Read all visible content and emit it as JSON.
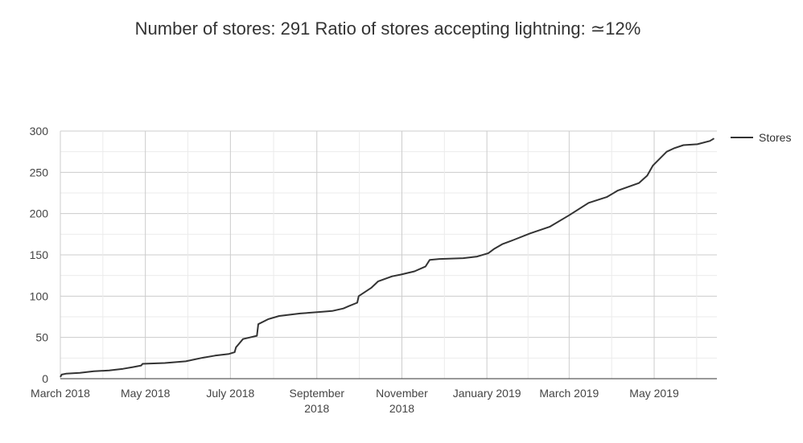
{
  "chart_data": {
    "type": "line",
    "title": "Number of stores: 291 Ratio of stores accepting lightning: ≃12%",
    "xlabel": "",
    "ylabel": "",
    "ylim": [
      0,
      300
    ],
    "yticks": [
      0,
      50,
      100,
      150,
      200,
      250,
      300
    ],
    "xlim": [
      "2018-03-01",
      "2019-06-15"
    ],
    "xticks": [
      {
        "date": "2018-03-01",
        "label": [
          "March 2018"
        ]
      },
      {
        "date": "2018-05-01",
        "label": [
          "May 2018"
        ]
      },
      {
        "date": "2018-07-01",
        "label": [
          "July 2018"
        ]
      },
      {
        "date": "2018-09-01",
        "label": [
          "September",
          "2018"
        ]
      },
      {
        "date": "2018-11-01",
        "label": [
          "November",
          "2018"
        ]
      },
      {
        "date": "2019-01-01",
        "label": [
          "January 2019"
        ]
      },
      {
        "date": "2019-03-01",
        "label": [
          "March 2019"
        ]
      },
      {
        "date": "2019-05-01",
        "label": [
          "May 2019"
        ]
      }
    ],
    "grid": true,
    "legend_position": "right",
    "colors": {
      "line": "#333333",
      "grid_major": "#cccccc",
      "grid_minor": "#ebebeb",
      "axis": "#333333"
    },
    "series": [
      {
        "name": "Stores",
        "x": [
          "2018-03-01",
          "2018-03-02",
          "2018-03-05",
          "2018-03-15",
          "2018-03-25",
          "2018-04-05",
          "2018-04-15",
          "2018-04-22",
          "2018-04-28",
          "2018-04-29",
          "2018-05-15",
          "2018-05-30",
          "2018-06-10",
          "2018-06-20",
          "2018-06-30",
          "2018-07-04",
          "2018-07-05",
          "2018-07-10",
          "2018-07-15",
          "2018-07-20",
          "2018-07-21",
          "2018-07-28",
          "2018-08-05",
          "2018-08-20",
          "2018-09-05",
          "2018-09-12",
          "2018-09-20",
          "2018-09-24",
          "2018-09-30",
          "2018-10-01",
          "2018-10-10",
          "2018-10-15",
          "2018-10-25",
          "2018-10-31",
          "2018-11-10",
          "2018-11-18",
          "2018-11-21",
          "2018-11-28",
          "2018-12-15",
          "2018-12-25",
          "2019-01-02",
          "2019-01-06",
          "2019-01-12",
          "2019-01-20",
          "2019-02-01",
          "2019-02-15",
          "2019-03-01",
          "2019-03-15",
          "2019-03-28",
          "2019-04-05",
          "2019-04-20",
          "2019-04-26",
          "2019-04-30",
          "2019-05-10",
          "2019-05-15",
          "2019-05-22",
          "2019-06-01",
          "2019-06-10",
          "2019-06-13"
        ],
        "y": [
          2,
          5,
          6,
          7,
          9,
          10,
          12,
          14,
          16,
          18,
          19,
          21,
          25,
          28,
          30,
          32,
          38,
          48,
          50,
          52,
          66,
          72,
          76,
          79,
          81,
          82,
          85,
          88,
          92,
          100,
          110,
          118,
          124,
          126,
          130,
          136,
          144,
          145,
          146,
          148,
          152,
          157,
          163,
          168,
          176,
          184,
          198,
          213,
          220,
          228,
          237,
          246,
          258,
          275,
          279,
          283,
          284,
          288,
          291
        ]
      }
    ]
  }
}
